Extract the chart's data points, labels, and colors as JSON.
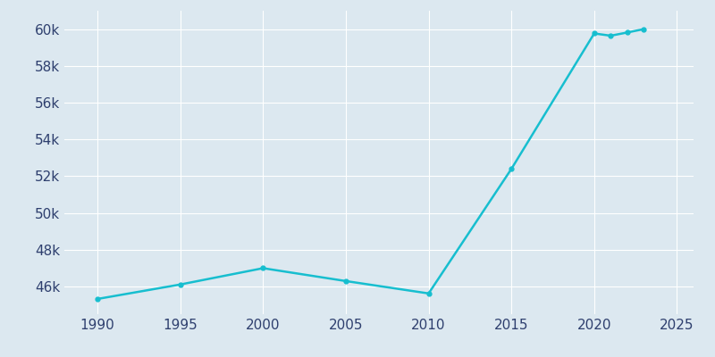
{
  "years": [
    1990,
    1995,
    2000,
    2005,
    2010,
    2015,
    2020,
    2021,
    2022,
    2023
  ],
  "population": [
    45327,
    46113,
    47000,
    46300,
    45627,
    52400,
    59763,
    59641,
    59817,
    60000
  ],
  "line_color": "#17BECF",
  "marker": "o",
  "marker_size": 3.5,
  "line_width": 1.8,
  "background_color": "#dce8f0",
  "plot_bg_color": "#dce8f0",
  "grid_color": "#ffffff",
  "tick_label_color": "#2e3f6e",
  "xlim": [
    1988,
    2026
  ],
  "ylim": [
    44500,
    61000
  ],
  "xticks": [
    1990,
    1995,
    2000,
    2005,
    2010,
    2015,
    2020,
    2025
  ],
  "ytick_step": 2000,
  "ytick_min": 46000,
  "ytick_max": 60000,
  "tick_fontsize": 11
}
